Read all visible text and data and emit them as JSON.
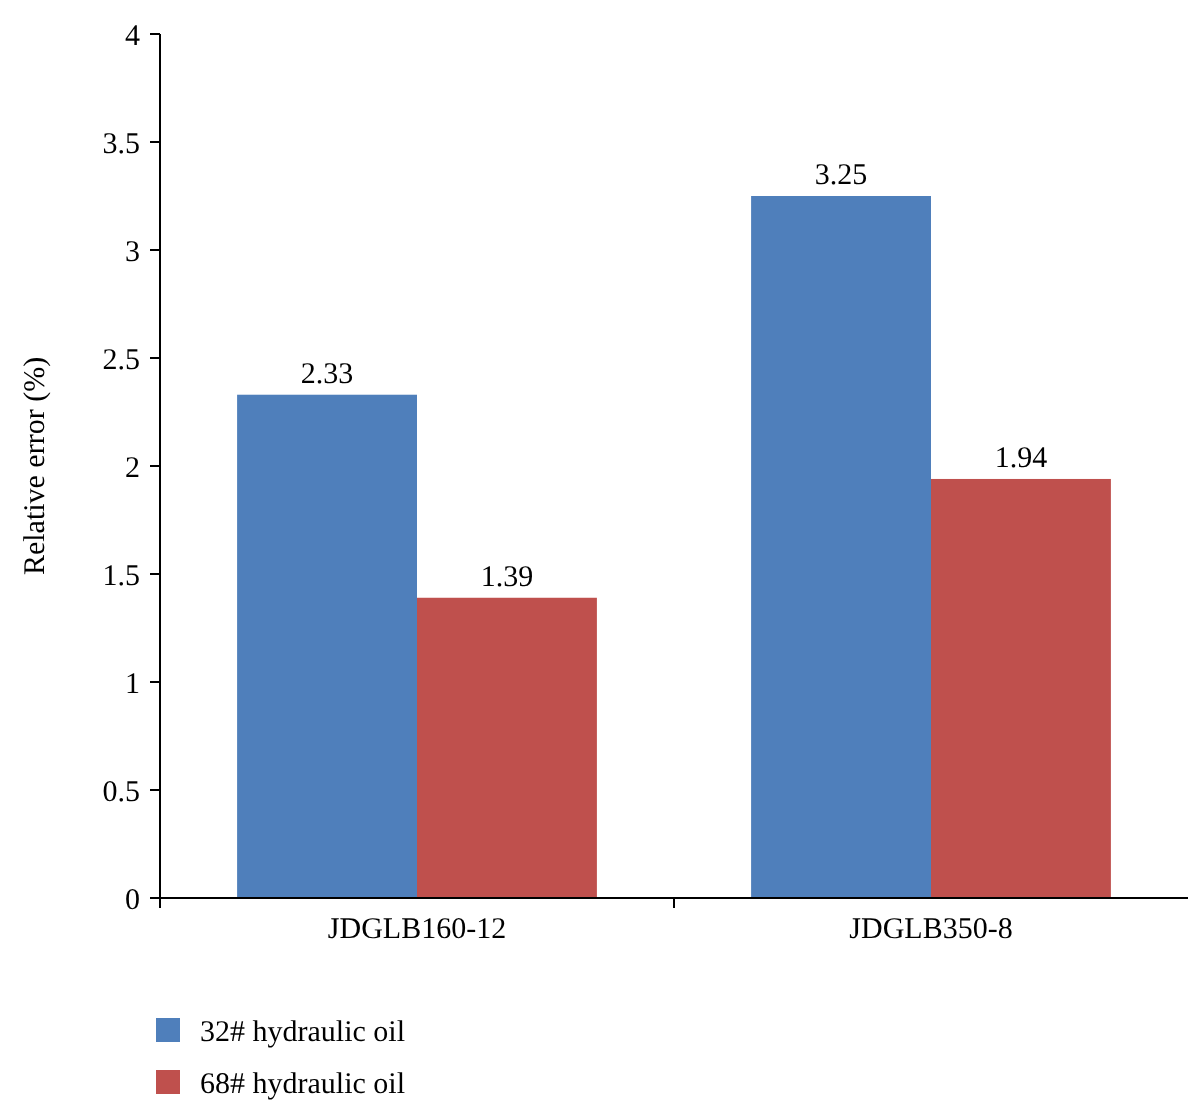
{
  "chart_data": {
    "type": "bar",
    "ylabel": "Relative error (%)",
    "categories": [
      "JDGLB160-12",
      "JDGLB350-8"
    ],
    "series": [
      {
        "name": "32# hydraulic oil",
        "color": "#4f7fbb",
        "values": [
          2.33,
          3.25
        ]
      },
      {
        "name": "68# hydraulic oil",
        "color": "#bf504d",
        "values": [
          1.39,
          1.94
        ]
      }
    ],
    "ylim": [
      0,
      4
    ],
    "yticks": [
      0,
      0.5,
      1,
      1.5,
      2,
      2.5,
      3,
      3.5,
      4
    ],
    "data_labels": true,
    "legend": "bottom left",
    "grid": false
  }
}
